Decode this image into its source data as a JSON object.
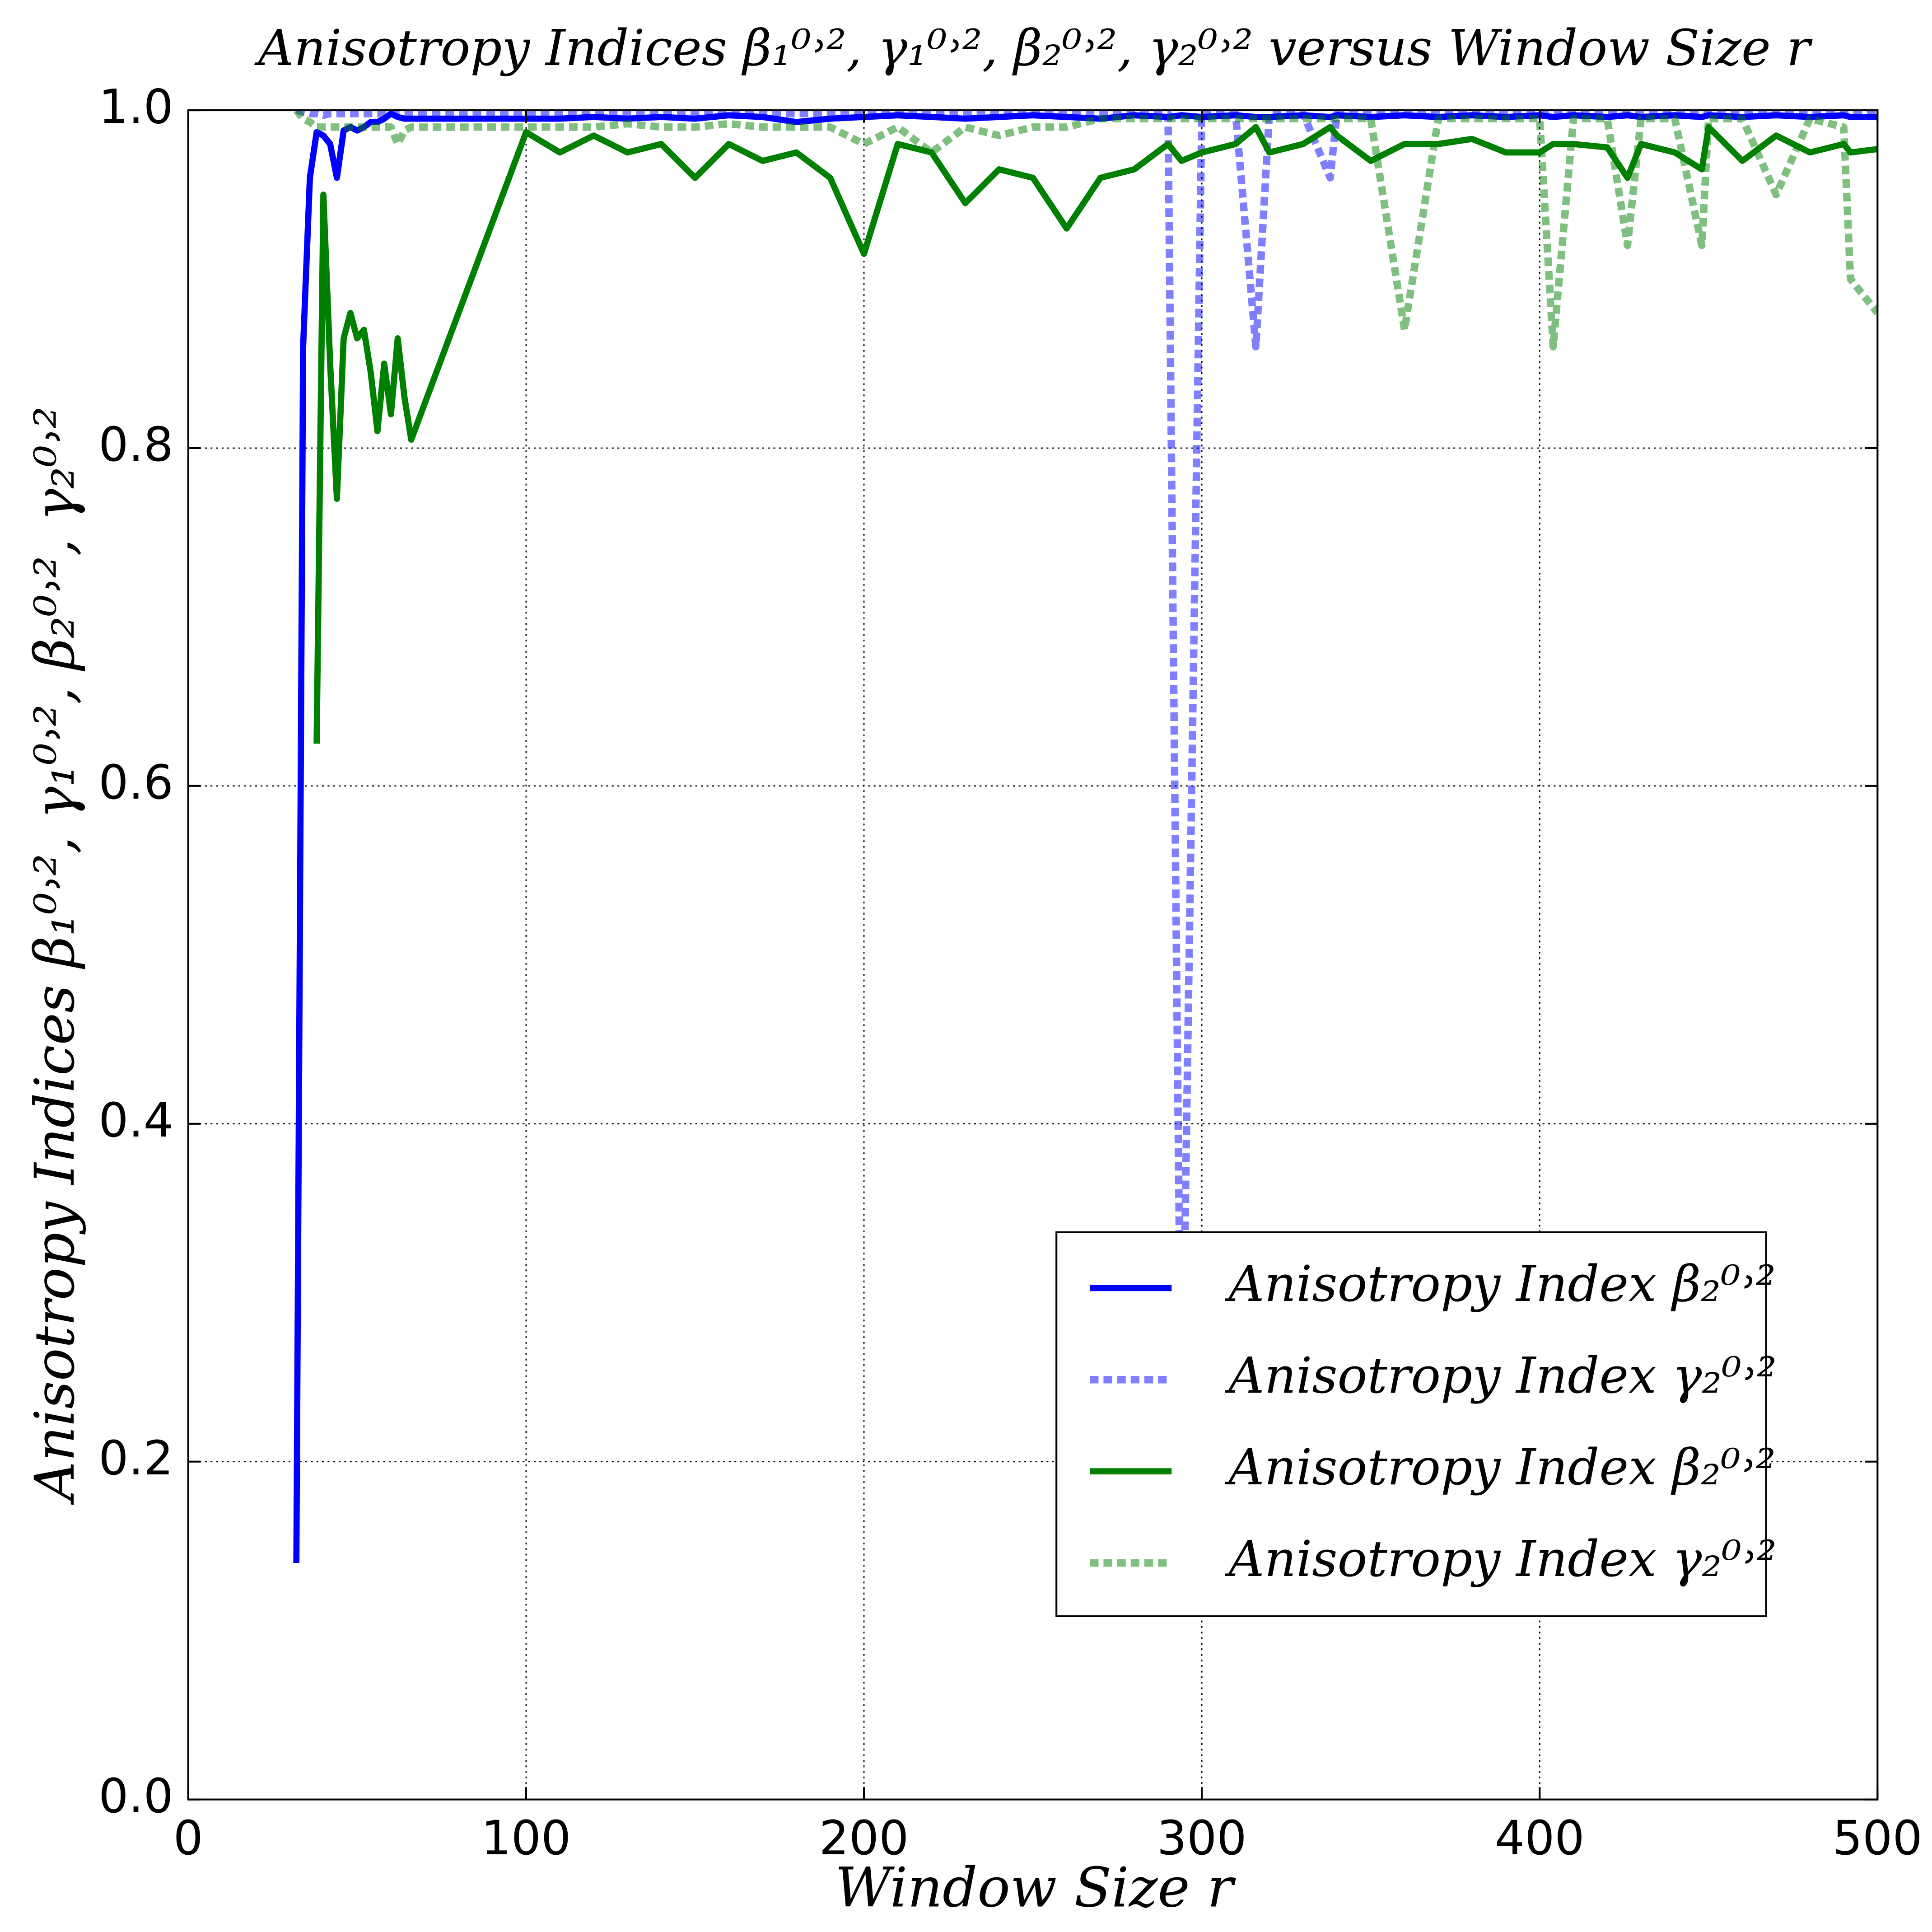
{
  "chart_data": {
    "type": "line",
    "title": "Anisotropy Indices β₁⁰˒², γ₁⁰˒², β₂⁰˒², γ₂⁰˒² versus Window Size r",
    "x_label": "Window Size r",
    "y_label": "Anisotropy Indices β₁⁰˒², γ₁⁰˒², β₂⁰˒², γ₂⁰˒²",
    "xlim": [
      0,
      500
    ],
    "ylim": [
      0,
      1
    ],
    "xticks": [
      0,
      100,
      200,
      300,
      400,
      500
    ],
    "yticks": [
      {
        "value": 0,
        "label": "0.0"
      },
      0.2,
      0.4,
      0.6,
      0.8,
      {
        "value": 1,
        "label": "1.0"
      }
    ],
    "grid": true,
    "legend": "lower right",
    "x": [
      32,
      34,
      36,
      38,
      40,
      42,
      44,
      46,
      48,
      50,
      52,
      54,
      56,
      58,
      60,
      62,
      64,
      66,
      100,
      110,
      120,
      130,
      140,
      150,
      160,
      170,
      180,
      190,
      200,
      210,
      220,
      230,
      240,
      250,
      260,
      270,
      280,
      290,
      294,
      300,
      310,
      316,
      320,
      330,
      338,
      340,
      350,
      360,
      370,
      380,
      390,
      400,
      404,
      410,
      420,
      426,
      430,
      440,
      448,
      450,
      460,
      470,
      480,
      490,
      492,
      500
    ],
    "series": [
      {
        "name": "Anisotropy Index β₂⁰˒²",
        "color": "#0000ff",
        "dashed": false,
        "opacity": 1,
        "values": [
          0.14,
          0.86,
          0.96,
          0.987,
          0.985,
          0.98,
          0.96,
          0.988,
          0.99,
          0.988,
          0.99,
          0.993,
          0.993,
          0.995,
          0.998,
          0.996,
          0.995,
          0.995,
          0.995,
          0.995,
          0.996,
          0.995,
          0.996,
          0.995,
          0.997,
          0.996,
          0.993,
          0.995,
          0.996,
          0.997,
          0.996,
          0.995,
          0.996,
          0.997,
          0.996,
          0.995,
          0.997,
          0.996,
          0.997,
          0.996,
          0.997,
          0.996,
          0.996,
          0.997,
          0.996,
          0.997,
          0.996,
          0.997,
          0.996,
          0.997,
          0.996,
          0.997,
          0.996,
          0.997,
          0.996,
          0.997,
          0.996,
          0.997,
          0.996,
          0.997,
          0.996,
          0.997,
          0.996,
          0.997,
          0.996,
          0.996
        ]
      },
      {
        "name": "Anisotropy Index γ₂⁰˒²",
        "color": "#0000ff",
        "dashed": true,
        "opacity": 0.5,
        "values": [
          1.0,
          0.999,
          0.998,
          0.998,
          0.997,
          0.998,
          0.998,
          0.998,
          0.998,
          0.998,
          0.998,
          0.998,
          0.998,
          0.998,
          0.998,
          0.998,
          0.998,
          0.998,
          0.998,
          0.998,
          0.998,
          0.998,
          0.998,
          0.998,
          0.998,
          0.998,
          0.998,
          0.998,
          0.998,
          0.998,
          0.998,
          0.998,
          0.998,
          0.998,
          0.998,
          0.998,
          0.998,
          0.998,
          0.2,
          0.998,
          0.998,
          0.86,
          0.998,
          0.998,
          0.96,
          0.998,
          0.998,
          0.998,
          0.998,
          0.998,
          0.998,
          0.998,
          0.998,
          0.998,
          0.998,
          0.998,
          0.998,
          0.998,
          0.998,
          0.998,
          0.998,
          0.998,
          0.998,
          0.998,
          0.998,
          0.998
        ]
      },
      {
        "name": "Anisotropy Index β₂⁰˒²",
        "color": "#008000",
        "dashed": false,
        "opacity": 1,
        "values": [
          null,
          null,
          null,
          0.625,
          0.95,
          0.85,
          0.77,
          0.865,
          0.88,
          0.865,
          0.87,
          0.845,
          0.81,
          0.85,
          0.82,
          0.865,
          0.83,
          0.805,
          0.987,
          0.975,
          0.985,
          0.975,
          0.98,
          0.96,
          0.98,
          0.97,
          0.975,
          0.96,
          0.915,
          0.98,
          0.975,
          0.945,
          0.965,
          0.96,
          0.93,
          0.96,
          0.965,
          0.98,
          0.97,
          0.975,
          0.98,
          0.99,
          0.975,
          0.98,
          0.99,
          0.985,
          0.97,
          0.98,
          0.98,
          0.983,
          0.975,
          0.975,
          0.98,
          0.98,
          0.978,
          0.96,
          0.98,
          0.975,
          0.965,
          0.99,
          0.97,
          0.985,
          0.975,
          0.98,
          0.975,
          0.977
        ]
      },
      {
        "name": "Anisotropy Index γ₂⁰˒²",
        "color": "#008000",
        "dashed": true,
        "opacity": 0.5,
        "values": [
          1.0,
          0.995,
          0.993,
          0.99,
          0.99,
          0.99,
          0.99,
          0.99,
          0.99,
          0.99,
          0.99,
          0.99,
          0.99,
          0.99,
          0.99,
          0.98,
          0.988,
          0.99,
          0.99,
          0.99,
          0.99,
          0.992,
          0.99,
          0.99,
          0.992,
          0.99,
          0.99,
          0.99,
          0.98,
          0.99,
          0.975,
          0.99,
          0.985,
          0.99,
          0.99,
          0.995,
          0.995,
          0.995,
          0.995,
          0.995,
          0.995,
          0.995,
          0.995,
          0.995,
          0.995,
          0.995,
          0.995,
          0.87,
          0.995,
          0.995,
          0.995,
          0.995,
          0.86,
          0.995,
          0.995,
          0.92,
          0.995,
          0.995,
          0.92,
          0.995,
          0.995,
          0.95,
          0.995,
          0.99,
          0.9,
          0.88
        ]
      }
    ]
  }
}
